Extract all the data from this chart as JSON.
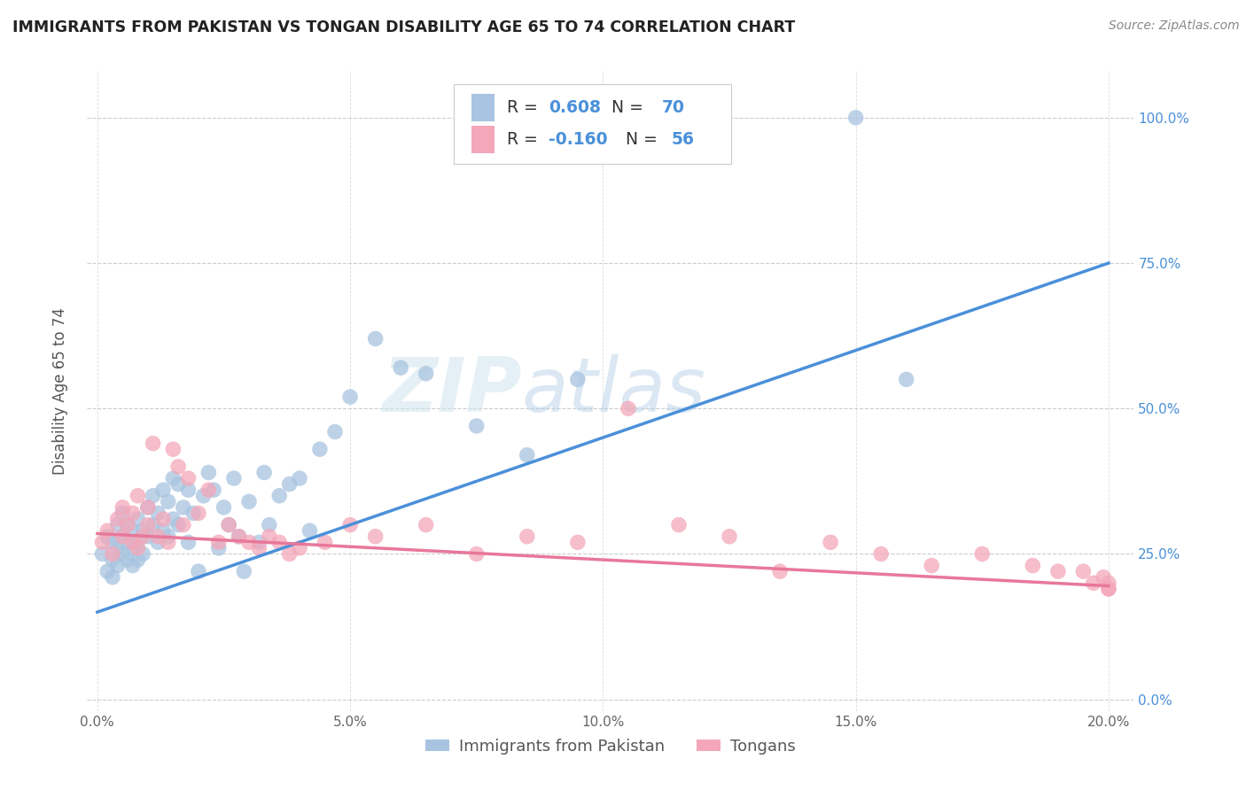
{
  "title": "IMMIGRANTS FROM PAKISTAN VS TONGAN DISABILITY AGE 65 TO 74 CORRELATION CHART",
  "source": "Source: ZipAtlas.com",
  "ylabel": "Disability Age 65 to 74",
  "x_tick_labels": [
    "0.0%",
    "5.0%",
    "10.0%",
    "15.0%",
    "20.0%"
  ],
  "x_tick_positions": [
    0.0,
    0.05,
    0.1,
    0.15,
    0.2
  ],
  "y_tick_labels": [
    "0.0%",
    "25.0%",
    "50.0%",
    "75.0%",
    "100.0%"
  ],
  "y_tick_positions": [
    0.0,
    0.25,
    0.5,
    0.75,
    1.0
  ],
  "xlim": [
    -0.002,
    0.205
  ],
  "ylim": [
    -0.02,
    1.08
  ],
  "pakistan_R": 0.608,
  "pakistan_N": 70,
  "tongan_R": -0.16,
  "tongan_N": 56,
  "pakistan_color": "#a8c4e0",
  "tongan_color": "#f4a7b9",
  "pakistan_line_color": "#4a90d9",
  "tongan_line_color": "#e8789a",
  "legend_label_pakistan": "Immigrants from Pakistan",
  "legend_label_tongan": "Tongans",
  "watermark": "ZIPatlas",
  "pak_line_x0": 0.0,
  "pak_line_y0": 0.15,
  "pak_line_x1": 0.2,
  "pak_line_y1": 0.75,
  "ton_line_x0": 0.0,
  "ton_line_y0": 0.285,
  "ton_line_x1": 0.2,
  "ton_line_y1": 0.195,
  "pakistan_scatter_x": [
    0.001,
    0.002,
    0.002,
    0.003,
    0.003,
    0.003,
    0.004,
    0.004,
    0.004,
    0.005,
    0.005,
    0.005,
    0.006,
    0.006,
    0.006,
    0.007,
    0.007,
    0.007,
    0.008,
    0.008,
    0.008,
    0.009,
    0.009,
    0.01,
    0.01,
    0.011,
    0.011,
    0.012,
    0.012,
    0.013,
    0.013,
    0.014,
    0.014,
    0.015,
    0.015,
    0.016,
    0.016,
    0.017,
    0.018,
    0.018,
    0.019,
    0.02,
    0.021,
    0.022,
    0.023,
    0.024,
    0.025,
    0.026,
    0.027,
    0.028,
    0.029,
    0.03,
    0.032,
    0.033,
    0.034,
    0.036,
    0.038,
    0.04,
    0.042,
    0.044,
    0.047,
    0.05,
    0.055,
    0.06,
    0.065,
    0.075,
    0.085,
    0.095,
    0.15,
    0.16
  ],
  "pakistan_scatter_y": [
    0.25,
    0.22,
    0.28,
    0.24,
    0.27,
    0.21,
    0.26,
    0.3,
    0.23,
    0.28,
    0.25,
    0.32,
    0.27,
    0.24,
    0.3,
    0.29,
    0.26,
    0.23,
    0.31,
    0.27,
    0.24,
    0.29,
    0.25,
    0.33,
    0.28,
    0.35,
    0.3,
    0.32,
    0.27,
    0.36,
    0.29,
    0.34,
    0.28,
    0.38,
    0.31,
    0.37,
    0.3,
    0.33,
    0.36,
    0.27,
    0.32,
    0.22,
    0.35,
    0.39,
    0.36,
    0.26,
    0.33,
    0.3,
    0.38,
    0.28,
    0.22,
    0.34,
    0.27,
    0.39,
    0.3,
    0.35,
    0.37,
    0.38,
    0.29,
    0.43,
    0.46,
    0.52,
    0.62,
    0.57,
    0.56,
    0.47,
    0.42,
    0.55,
    1.0,
    0.55
  ],
  "tongan_scatter_x": [
    0.001,
    0.002,
    0.003,
    0.004,
    0.005,
    0.005,
    0.006,
    0.007,
    0.007,
    0.008,
    0.008,
    0.009,
    0.01,
    0.01,
    0.011,
    0.012,
    0.013,
    0.014,
    0.015,
    0.016,
    0.017,
    0.018,
    0.02,
    0.022,
    0.024,
    0.026,
    0.028,
    0.03,
    0.032,
    0.034,
    0.036,
    0.038,
    0.04,
    0.045,
    0.05,
    0.055,
    0.065,
    0.075,
    0.085,
    0.095,
    0.105,
    0.115,
    0.125,
    0.135,
    0.145,
    0.155,
    0.165,
    0.175,
    0.185,
    0.19,
    0.195,
    0.197,
    0.199,
    0.2,
    0.2,
    0.2
  ],
  "tongan_scatter_y": [
    0.27,
    0.29,
    0.25,
    0.31,
    0.28,
    0.33,
    0.3,
    0.27,
    0.32,
    0.26,
    0.35,
    0.28,
    0.3,
    0.33,
    0.44,
    0.28,
    0.31,
    0.27,
    0.43,
    0.4,
    0.3,
    0.38,
    0.32,
    0.36,
    0.27,
    0.3,
    0.28,
    0.27,
    0.26,
    0.28,
    0.27,
    0.25,
    0.26,
    0.27,
    0.3,
    0.28,
    0.3,
    0.25,
    0.28,
    0.27,
    0.5,
    0.3,
    0.28,
    0.22,
    0.27,
    0.25,
    0.23,
    0.25,
    0.23,
    0.22,
    0.22,
    0.2,
    0.21,
    0.2,
    0.19,
    0.19
  ]
}
